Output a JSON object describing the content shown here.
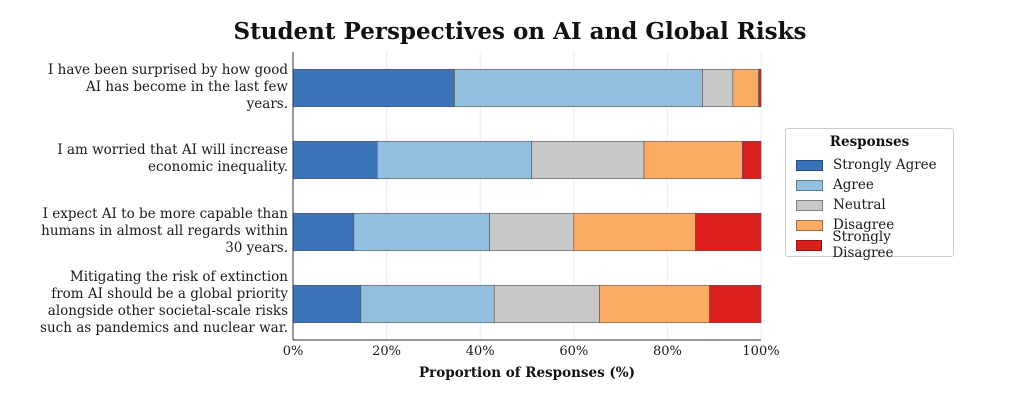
{
  "chart_data": {
    "type": "bar",
    "orientation": "horizontal",
    "stacked": true,
    "title": "Student Perspectives on AI and Global Risks",
    "xlabel": "Proportion of Responses (%)",
    "ylabel": "",
    "xlim": [
      0,
      100
    ],
    "xticks": [
      "0%",
      "20%",
      "40%",
      "60%",
      "80%",
      "100%"
    ],
    "categories": [
      [
        "I have been surprised by how good",
        "AI has become in the last few",
        "years."
      ],
      [
        "I am worried that AI will increase",
        "economic inequality."
      ],
      [
        "I expect AI to be more capable than",
        "humans in almost all regards within",
        "30 years."
      ],
      [
        "Mitigating the risk of extinction",
        "from AI should be a global priority",
        "alongside other societal-scale risks",
        "such as pandemics and nuclear war."
      ]
    ],
    "series": [
      {
        "name": "Strongly Agree",
        "color": "#3b73b9",
        "values": [
          34.5,
          18.0,
          13.0,
          14.5
        ]
      },
      {
        "name": "Agree",
        "color": "#93c0e0",
        "values": [
          53.0,
          33.0,
          29.0,
          28.5
        ]
      },
      {
        "name": "Neutral",
        "color": "#c8c8c8",
        "values": [
          6.5,
          24.0,
          18.0,
          22.5
        ]
      },
      {
        "name": "Disagree",
        "color": "#fbab63",
        "values": [
          5.5,
          21.0,
          26.0,
          23.5
        ]
      },
      {
        "name": "Strongly Disagree",
        "color": "#db1f1c",
        "values": [
          0.5,
          4.0,
          14.0,
          11.0
        ]
      }
    ],
    "legend": {
      "title": "Responses",
      "placement": "right"
    },
    "grid": true
  }
}
